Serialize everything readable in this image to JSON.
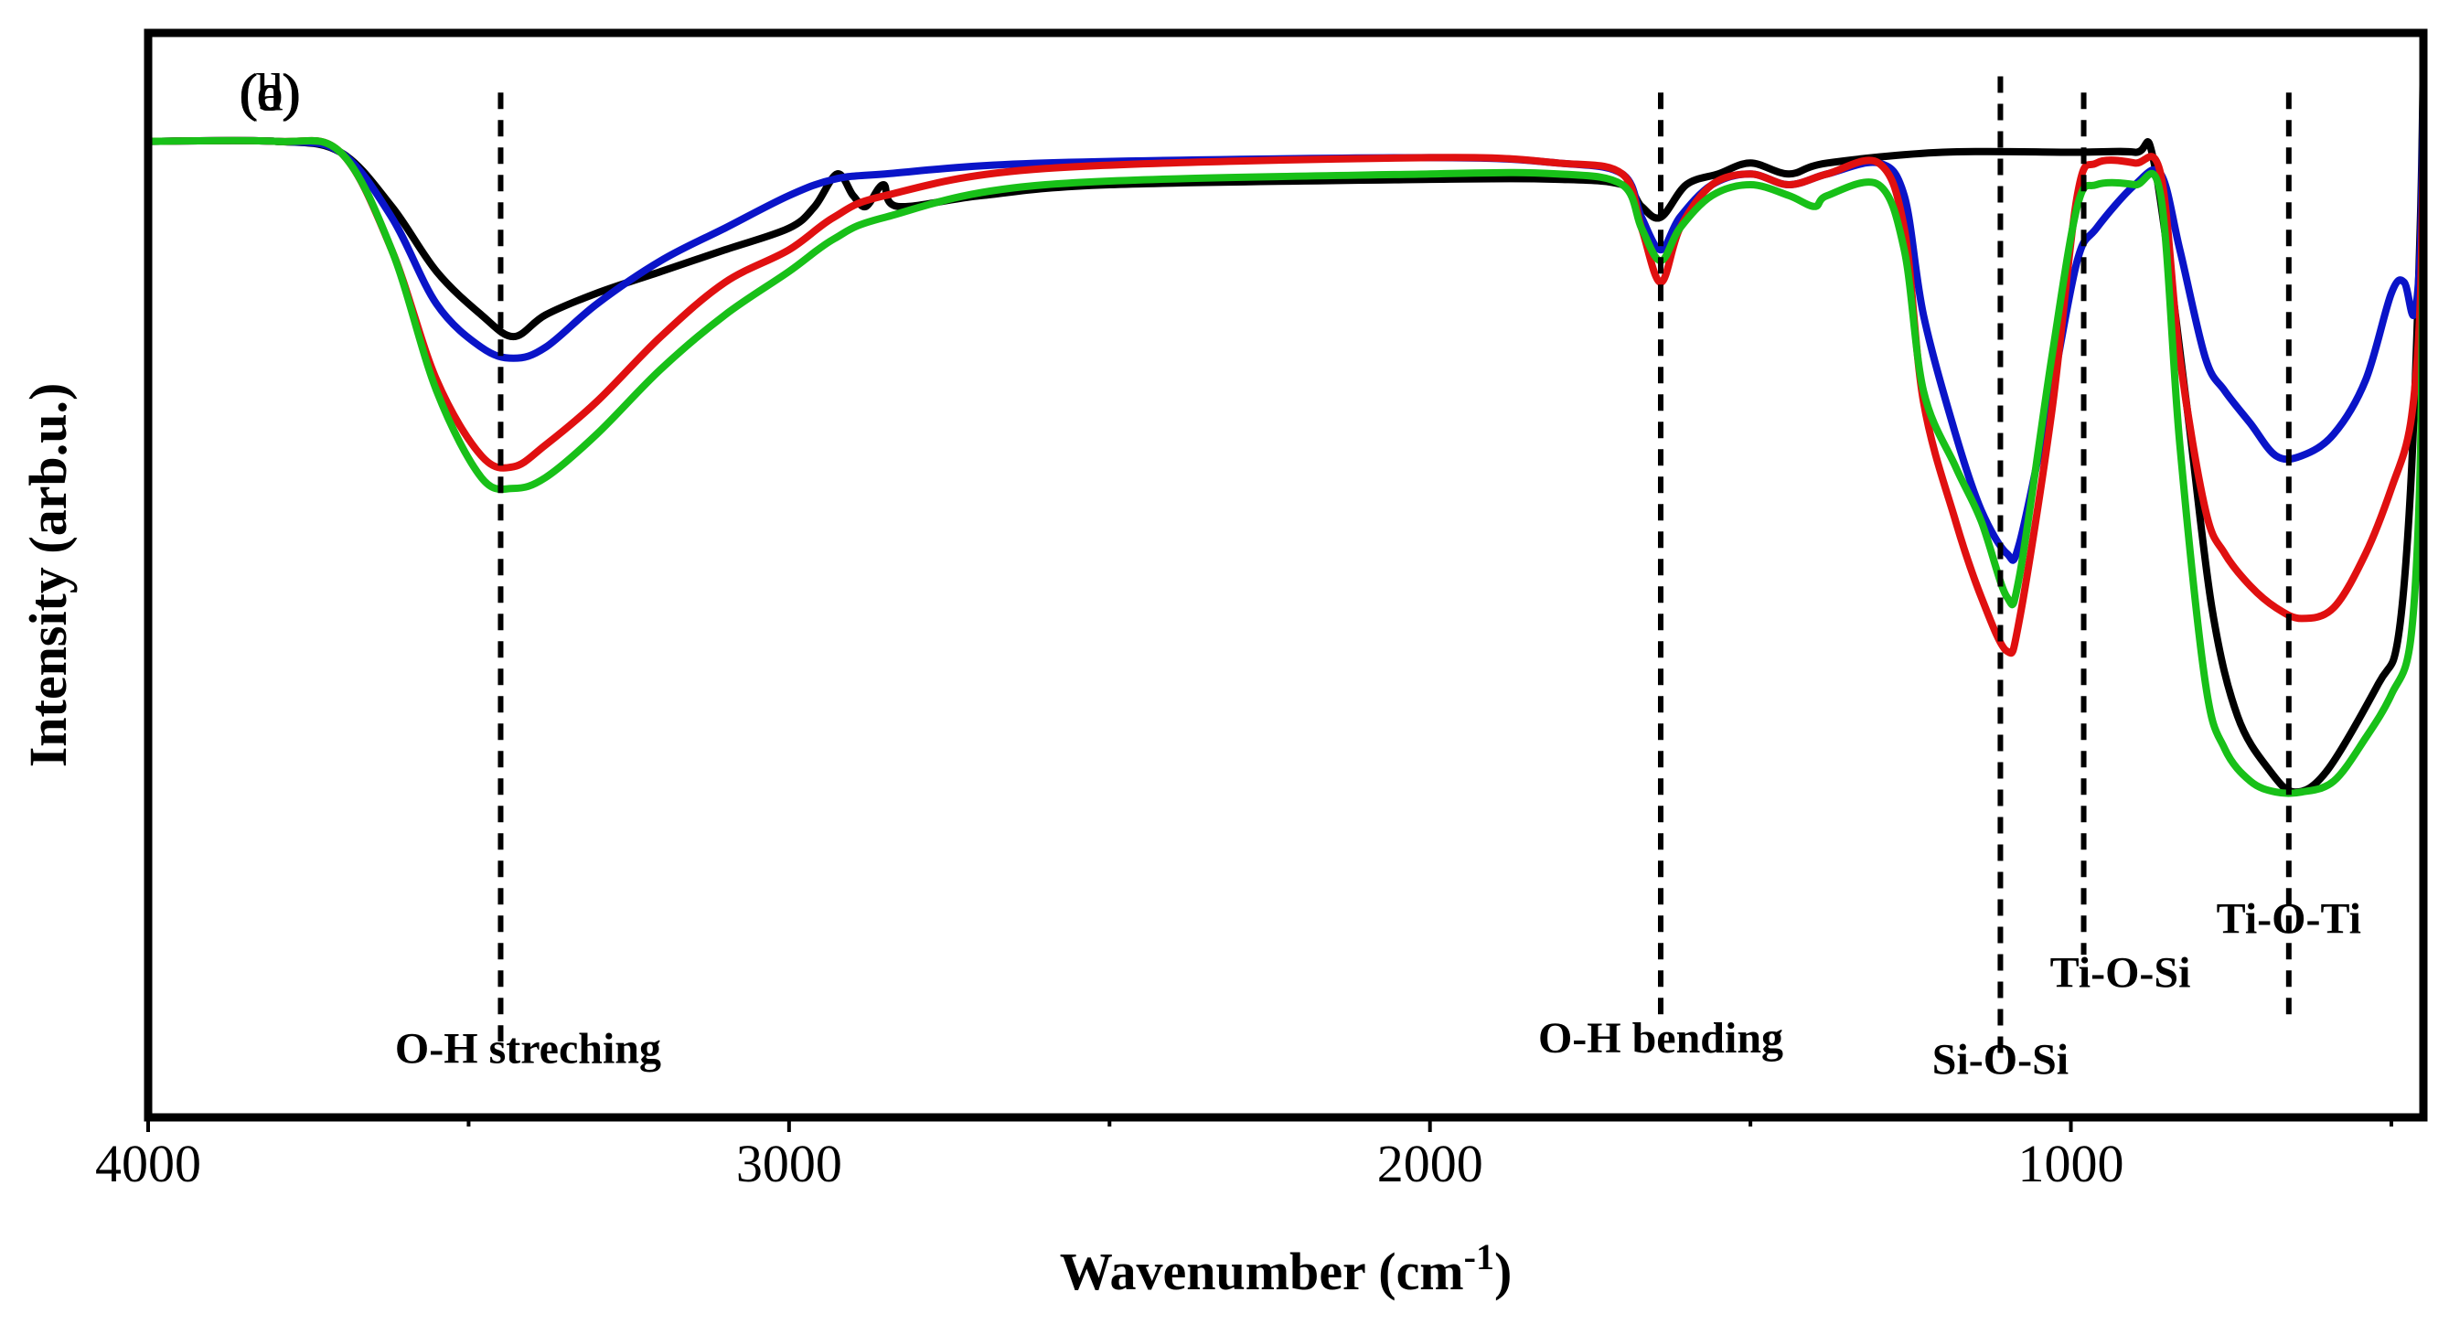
{
  "chart_data": {
    "type": "line",
    "xlabel": "Wavenumber (cm",
    "xlabel_sup": "-1",
    "xlabel_end": ")",
    "ylabel": "Intensity (arb.u.)",
    "xlim": [
      4000,
      450
    ],
    "x_ticks": [
      4000,
      3000,
      2000,
      1000
    ],
    "x_ticks_minor": [
      3500,
      2500,
      1500,
      500
    ],
    "y_ticks_visible": false,
    "grid": false,
    "series": [
      {
        "name": "(a)",
        "color": "#000000",
        "points": [
          [
            4000,
            0.9
          ],
          [
            3800,
            0.9
          ],
          [
            3700,
            0.89
          ],
          [
            3620,
            0.84
          ],
          [
            3550,
            0.78
          ],
          [
            3480,
            0.74
          ],
          [
            3430,
            0.72
          ],
          [
            3380,
            0.74
          ],
          [
            3300,
            0.76
          ],
          [
            3200,
            0.78
          ],
          [
            3100,
            0.8
          ],
          [
            3000,
            0.82
          ],
          [
            2960,
            0.84
          ],
          [
            2925,
            0.87
          ],
          [
            2900,
            0.85
          ],
          [
            2880,
            0.84
          ],
          [
            2853,
            0.86
          ],
          [
            2830,
            0.84
          ],
          [
            2700,
            0.85
          ],
          [
            2500,
            0.86
          ],
          [
            2000,
            0.865
          ],
          [
            1800,
            0.865
          ],
          [
            1700,
            0.86
          ],
          [
            1670,
            0.84
          ],
          [
            1640,
            0.83
          ],
          [
            1600,
            0.86
          ],
          [
            1550,
            0.87
          ],
          [
            1500,
            0.88
          ],
          [
            1440,
            0.87
          ],
          [
            1380,
            0.88
          ],
          [
            1200,
            0.89
          ],
          [
            1000,
            0.89
          ],
          [
            900,
            0.89
          ],
          [
            870,
            0.88
          ],
          [
            820,
            0.66
          ],
          [
            780,
            0.47
          ],
          [
            740,
            0.37
          ],
          [
            690,
            0.32
          ],
          [
            650,
            0.3
          ],
          [
            600,
            0.32
          ],
          [
            520,
            0.4
          ],
          [
            490,
            0.44
          ],
          [
            470,
            0.58
          ],
          [
            455,
            0.82
          ],
          [
            450,
            0.98
          ]
        ]
      },
      {
        "name": "(b)",
        "color": "#0a14c8",
        "points": [
          [
            4000,
            0.9
          ],
          [
            3800,
            0.9
          ],
          [
            3700,
            0.89
          ],
          [
            3620,
            0.83
          ],
          [
            3550,
            0.75
          ],
          [
            3480,
            0.71
          ],
          [
            3430,
            0.7
          ],
          [
            3380,
            0.71
          ],
          [
            3300,
            0.75
          ],
          [
            3200,
            0.79
          ],
          [
            3100,
            0.82
          ],
          [
            3000,
            0.85
          ],
          [
            2930,
            0.865
          ],
          [
            2850,
            0.87
          ],
          [
            2600,
            0.88
          ],
          [
            2000,
            0.885
          ],
          [
            1800,
            0.88
          ],
          [
            1700,
            0.87
          ],
          [
            1670,
            0.83
          ],
          [
            1640,
            0.8
          ],
          [
            1610,
            0.83
          ],
          [
            1560,
            0.86
          ],
          [
            1500,
            0.87
          ],
          [
            1440,
            0.86
          ],
          [
            1380,
            0.87
          ],
          [
            1300,
            0.88
          ],
          [
            1260,
            0.85
          ],
          [
            1230,
            0.74
          ],
          [
            1180,
            0.63
          ],
          [
            1140,
            0.56
          ],
          [
            1100,
            0.52
          ],
          [
            1080,
            0.53
          ],
          [
            1030,
            0.67
          ],
          [
            990,
            0.79
          ],
          [
            960,
            0.82
          ],
          [
            900,
            0.86
          ],
          [
            860,
            0.87
          ],
          [
            830,
            0.8
          ],
          [
            790,
            0.7
          ],
          [
            760,
            0.67
          ],
          [
            720,
            0.64
          ],
          [
            680,
            0.61
          ],
          [
            640,
            0.61
          ],
          [
            590,
            0.63
          ],
          [
            540,
            0.68
          ],
          [
            500,
            0.76
          ],
          [
            480,
            0.77
          ],
          [
            465,
            0.74
          ],
          [
            455,
            0.8
          ],
          [
            450,
            0.96
          ]
        ]
      },
      {
        "name": "(c)",
        "color": "#e01010",
        "points": [
          [
            4000,
            0.9
          ],
          [
            3800,
            0.9
          ],
          [
            3700,
            0.89
          ],
          [
            3620,
            0.8
          ],
          [
            3550,
            0.68
          ],
          [
            3480,
            0.61
          ],
          [
            3430,
            0.6
          ],
          [
            3380,
            0.62
          ],
          [
            3300,
            0.66
          ],
          [
            3200,
            0.72
          ],
          [
            3100,
            0.77
          ],
          [
            3000,
            0.8
          ],
          [
            2930,
            0.83
          ],
          [
            2850,
            0.85
          ],
          [
            2600,
            0.875
          ],
          [
            2000,
            0.885
          ],
          [
            1800,
            0.88
          ],
          [
            1700,
            0.87
          ],
          [
            1670,
            0.82
          ],
          [
            1640,
            0.77
          ],
          [
            1610,
            0.82
          ],
          [
            1560,
            0.86
          ],
          [
            1500,
            0.87
          ],
          [
            1440,
            0.86
          ],
          [
            1380,
            0.87
          ],
          [
            1300,
            0.88
          ],
          [
            1260,
            0.82
          ],
          [
            1230,
            0.66
          ],
          [
            1180,
            0.55
          ],
          [
            1140,
            0.48
          ],
          [
            1100,
            0.43
          ],
          [
            1080,
            0.46
          ],
          [
            1030,
            0.65
          ],
          [
            990,
            0.85
          ],
          [
            960,
            0.88
          ],
          [
            900,
            0.88
          ],
          [
            860,
            0.87
          ],
          [
            830,
            0.7
          ],
          [
            790,
            0.56
          ],
          [
            760,
            0.52
          ],
          [
            720,
            0.49
          ],
          [
            680,
            0.47
          ],
          [
            640,
            0.46
          ],
          [
            590,
            0.47
          ],
          [
            540,
            0.52
          ],
          [
            500,
            0.58
          ],
          [
            470,
            0.64
          ],
          [
            455,
            0.75
          ],
          [
            450,
            0.92
          ]
        ]
      },
      {
        "name": "(d)",
        "color": "#18c018",
        "points": [
          [
            4000,
            0.9
          ],
          [
            3800,
            0.9
          ],
          [
            3700,
            0.89
          ],
          [
            3620,
            0.8
          ],
          [
            3550,
            0.67
          ],
          [
            3480,
            0.59
          ],
          [
            3430,
            0.58
          ],
          [
            3380,
            0.59
          ],
          [
            3300,
            0.63
          ],
          [
            3200,
            0.69
          ],
          [
            3100,
            0.74
          ],
          [
            3000,
            0.78
          ],
          [
            2930,
            0.81
          ],
          [
            2850,
            0.83
          ],
          [
            2600,
            0.86
          ],
          [
            2000,
            0.87
          ],
          [
            1800,
            0.87
          ],
          [
            1700,
            0.86
          ],
          [
            1670,
            0.82
          ],
          [
            1640,
            0.79
          ],
          [
            1610,
            0.82
          ],
          [
            1560,
            0.85
          ],
          [
            1500,
            0.86
          ],
          [
            1440,
            0.85
          ],
          [
            1400,
            0.84
          ],
          [
            1380,
            0.85
          ],
          [
            1300,
            0.86
          ],
          [
            1260,
            0.8
          ],
          [
            1230,
            0.67
          ],
          [
            1180,
            0.6
          ],
          [
            1140,
            0.55
          ],
          [
            1100,
            0.48
          ],
          [
            1080,
            0.5
          ],
          [
            1030,
            0.7
          ],
          [
            990,
            0.84
          ],
          [
            960,
            0.86
          ],
          [
            900,
            0.86
          ],
          [
            860,
            0.85
          ],
          [
            830,
            0.62
          ],
          [
            790,
            0.4
          ],
          [
            760,
            0.34
          ],
          [
            720,
            0.31
          ],
          [
            680,
            0.3
          ],
          [
            640,
            0.3
          ],
          [
            590,
            0.31
          ],
          [
            540,
            0.35
          ],
          [
            500,
            0.39
          ],
          [
            470,
            0.44
          ],
          [
            455,
            0.6
          ],
          [
            450,
            0.86
          ]
        ]
      }
    ],
    "markers": [
      {
        "x": 3450,
        "label": "O-H streching"
      },
      {
        "x": 1640,
        "label": "O-H bending"
      },
      {
        "x": 1110,
        "label": "Si-O-Si"
      },
      {
        "x": 980,
        "label": "Ti-O-Si"
      },
      {
        "x": 660,
        "label": "Ti-O-Ti"
      }
    ]
  }
}
